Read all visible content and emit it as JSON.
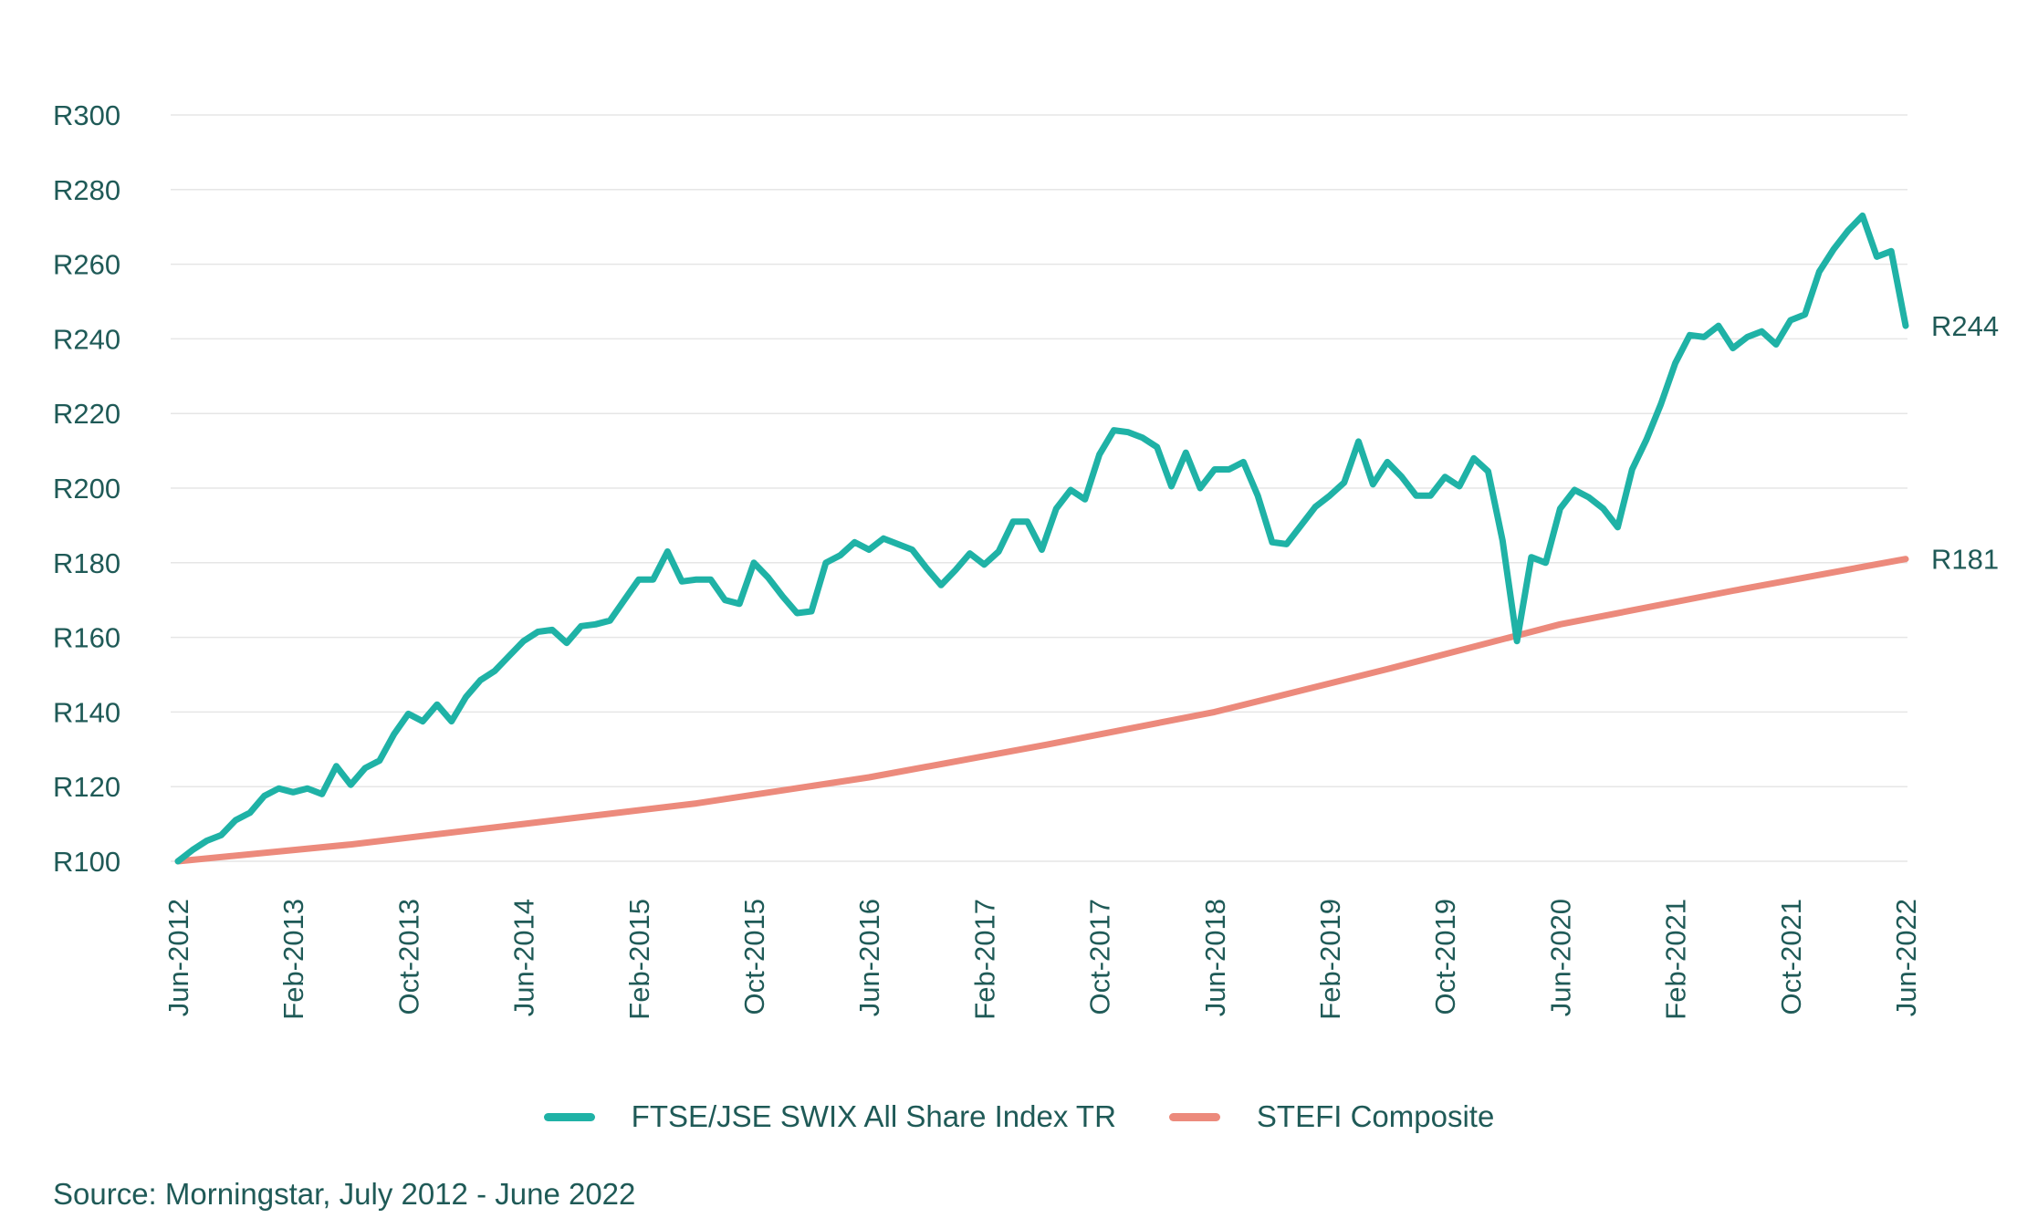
{
  "chart_data": {
    "type": "line",
    "y_tick_labels": [
      "R100",
      "R120",
      "R140",
      "R160",
      "R180",
      "R200",
      "R220",
      "R240",
      "R260",
      "R280",
      "R300"
    ],
    "y_tick_values": [
      100,
      120,
      140,
      160,
      180,
      200,
      220,
      240,
      260,
      280,
      300
    ],
    "ylim": [
      100,
      300
    ],
    "x_tick_labels": [
      "Jun-2012",
      "Feb-2013",
      "Oct-2013",
      "Jun-2014",
      "Feb-2015",
      "Oct-2015",
      "Jun-2016",
      "Feb-2017",
      "Oct-2017",
      "Jun-2018",
      "Feb-2019",
      "Oct-2019",
      "Jun-2020",
      "Feb-2021",
      "Oct-2021",
      "Jun-2022"
    ],
    "x_start": "2012-06",
    "x_end": "2022-06",
    "grid": "horizontal",
    "legend_position": "bottom",
    "series": [
      {
        "name": "FTSE/JSE SWIX All Share Index TR",
        "color": "#1fb2a6",
        "end_label": "R244",
        "points": [
          [
            "2012-06",
            100
          ],
          [
            "2012-07",
            103
          ],
          [
            "2012-08",
            105.5
          ],
          [
            "2012-09",
            107
          ],
          [
            "2012-10",
            111
          ],
          [
            "2012-11",
            113
          ],
          [
            "2012-12",
            117.5
          ],
          [
            "2013-01",
            119.5
          ],
          [
            "2013-02",
            118.5
          ],
          [
            "2013-03",
            119.5
          ],
          [
            "2013-04",
            118
          ],
          [
            "2013-05",
            125.5
          ],
          [
            "2013-06",
            120.5
          ],
          [
            "2013-07",
            125
          ],
          [
            "2013-08",
            127
          ],
          [
            "2013-09",
            134
          ],
          [
            "2013-10",
            139.5
          ],
          [
            "2013-11",
            137.5
          ],
          [
            "2013-12",
            142
          ],
          [
            "2014-01",
            137.5
          ],
          [
            "2014-02",
            144
          ],
          [
            "2014-03",
            148.5
          ],
          [
            "2014-04",
            151
          ],
          [
            "2014-05",
            155
          ],
          [
            "2014-06",
            159
          ],
          [
            "2014-07",
            161.5
          ],
          [
            "2014-08",
            162
          ],
          [
            "2014-09",
            158.5
          ],
          [
            "2014-10",
            163
          ],
          [
            "2014-11",
            163.5
          ],
          [
            "2014-12",
            164.5
          ],
          [
            "2015-01",
            170
          ],
          [
            "2015-02",
            175.5
          ],
          [
            "2015-03",
            175.5
          ],
          [
            "2015-04",
            183
          ],
          [
            "2015-05",
            175
          ],
          [
            "2015-06",
            175.5
          ],
          [
            "2015-07",
            175.5
          ],
          [
            "2015-08",
            170
          ],
          [
            "2015-09",
            169
          ],
          [
            "2015-10",
            180
          ],
          [
            "2015-11",
            176
          ],
          [
            "2015-12",
            171
          ],
          [
            "2016-01",
            166.5
          ],
          [
            "2016-02",
            167
          ],
          [
            "2016-03",
            180
          ],
          [
            "2016-04",
            182
          ],
          [
            "2016-05",
            185.5
          ],
          [
            "2016-06",
            183.5
          ],
          [
            "2016-07",
            186.5
          ],
          [
            "2016-08",
            185
          ],
          [
            "2016-09",
            183.5
          ],
          [
            "2016-10",
            178.5
          ],
          [
            "2016-11",
            174
          ],
          [
            "2016-12",
            178
          ],
          [
            "2017-01",
            182.5
          ],
          [
            "2017-02",
            179.5
          ],
          [
            "2017-03",
            183
          ],
          [
            "2017-04",
            191
          ],
          [
            "2017-05",
            191
          ],
          [
            "2017-06",
            183.5
          ],
          [
            "2017-07",
            194.5
          ],
          [
            "2017-08",
            199.5
          ],
          [
            "2017-09",
            197
          ],
          [
            "2017-10",
            209
          ],
          [
            "2017-11",
            215.5
          ],
          [
            "2017-12",
            215
          ],
          [
            "2018-01",
            213.5
          ],
          [
            "2018-02",
            211
          ],
          [
            "2018-03",
            200.5
          ],
          [
            "2018-04",
            209.5
          ],
          [
            "2018-05",
            200
          ],
          [
            "2018-06",
            205
          ],
          [
            "2018-07",
            205
          ],
          [
            "2018-08",
            207
          ],
          [
            "2018-09",
            198
          ],
          [
            "2018-10",
            185.5
          ],
          [
            "2018-11",
            185
          ],
          [
            "2018-12",
            190
          ],
          [
            "2019-01",
            195
          ],
          [
            "2019-02",
            198
          ],
          [
            "2019-03",
            201.5
          ],
          [
            "2019-04",
            212.5
          ],
          [
            "2019-05",
            201
          ],
          [
            "2019-06",
            207
          ],
          [
            "2019-07",
            203
          ],
          [
            "2019-08",
            198
          ],
          [
            "2019-09",
            198
          ],
          [
            "2019-10",
            203
          ],
          [
            "2019-11",
            200.5
          ],
          [
            "2019-12",
            208
          ],
          [
            "2020-01",
            204.5
          ],
          [
            "2020-02",
            186
          ],
          [
            "2020-03",
            159
          ],
          [
            "2020-04",
            181.5
          ],
          [
            "2020-05",
            180
          ],
          [
            "2020-06",
            194.5
          ],
          [
            "2020-07",
            199.5
          ],
          [
            "2020-08",
            197.5
          ],
          [
            "2020-09",
            194.5
          ],
          [
            "2020-10",
            189.5
          ],
          [
            "2020-11",
            205
          ],
          [
            "2020-12",
            213
          ],
          [
            "2021-01",
            222.5
          ],
          [
            "2021-02",
            233.5
          ],
          [
            "2021-03",
            241
          ],
          [
            "2021-04",
            240.5
          ],
          [
            "2021-05",
            243.5
          ],
          [
            "2021-06",
            237.5
          ],
          [
            "2021-07",
            240.5
          ],
          [
            "2021-08",
            242
          ],
          [
            "2021-09",
            238.5
          ],
          [
            "2021-10",
            245
          ],
          [
            "2021-11",
            246.5
          ],
          [
            "2021-12",
            258
          ],
          [
            "2022-01",
            264
          ],
          [
            "2022-02",
            269
          ],
          [
            "2022-03",
            273
          ],
          [
            "2022-04",
            262
          ],
          [
            "2022-05",
            263.5
          ],
          [
            "2022-06",
            243.5
          ]
        ]
      },
      {
        "name": "STEFI Composite",
        "color": "#ec8a7c",
        "end_label": "R181",
        "points": [
          [
            "2012-06",
            100
          ],
          [
            "2013-06",
            104.5
          ],
          [
            "2014-06",
            110
          ],
          [
            "2015-06",
            115.5
          ],
          [
            "2016-06",
            122.5
          ],
          [
            "2017-06",
            131
          ],
          [
            "2018-06",
            140
          ],
          [
            "2019-06",
            151.5
          ],
          [
            "2020-06",
            163.5
          ],
          [
            "2021-06",
            172.5
          ],
          [
            "2022-06",
            181
          ]
        ]
      }
    ],
    "source": "Source: Morningstar, July 2012 - June 2022"
  }
}
